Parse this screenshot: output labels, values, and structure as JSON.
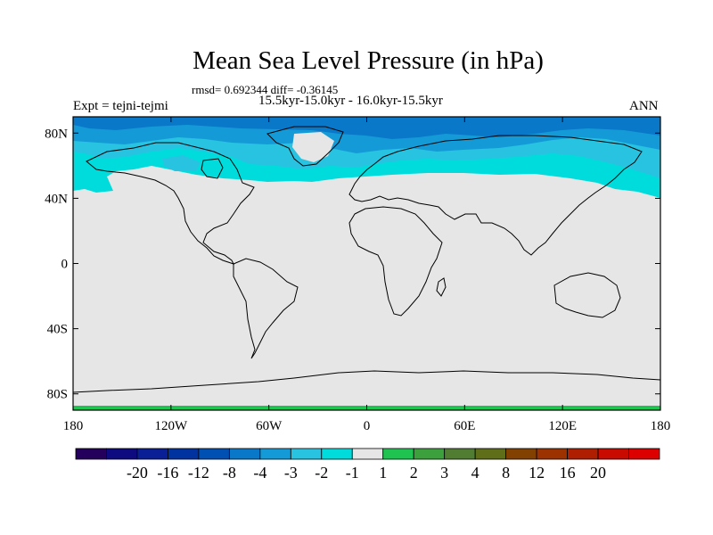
{
  "title": "Mean Sea Level Pressure (in hPa)",
  "stats_line": "rmsd= 0.692344 diff= -0.36145",
  "period_line": "15.5kyr-15.0kyr - 16.0kyr-15.5kyr",
  "experiment": "Expt = tejni-tejmi",
  "season": "ANN",
  "map": {
    "projection": "cylindrical-equidistant",
    "lon_range": [
      -180,
      180
    ],
    "lat_range": [
      -90,
      90
    ],
    "lon_ticks": [
      {
        "value": -180,
        "label": "180"
      },
      {
        "value": -120,
        "label": "120W"
      },
      {
        "value": -60,
        "label": "60W"
      },
      {
        "value": 0,
        "label": "0"
      },
      {
        "value": 60,
        "label": "60E"
      },
      {
        "value": 120,
        "label": "120E"
      },
      {
        "value": 180,
        "label": "180"
      }
    ],
    "lat_ticks": [
      {
        "value": 80,
        "label": "80N"
      },
      {
        "value": 40,
        "label": "40N"
      },
      {
        "value": 0,
        "label": "0"
      },
      {
        "value": -40,
        "label": "40S"
      },
      {
        "value": -80,
        "label": "80S"
      }
    ],
    "background_color": "#e6e6e6",
    "coastline_color": "#000000"
  },
  "colorbar": {
    "colors": [
      "#24005c",
      "#0e0a80",
      "#0a1e96",
      "#0032a0",
      "#0050b4",
      "#0a78c8",
      "#149bd7",
      "#28c3e1",
      "#00dcdc",
      "#e6e6e6",
      "#1ec350",
      "#3ca03c",
      "#507d32",
      "#5f6e19",
      "#824100",
      "#9b3200",
      "#af1e00",
      "#c80a00",
      "#dc0000"
    ],
    "labels": [
      "-20",
      "-16",
      "-12",
      "-8",
      "-4",
      "-3",
      "-2",
      "-1",
      "1",
      "2",
      "3",
      "4",
      "8",
      "12",
      "16",
      "20"
    ]
  }
}
